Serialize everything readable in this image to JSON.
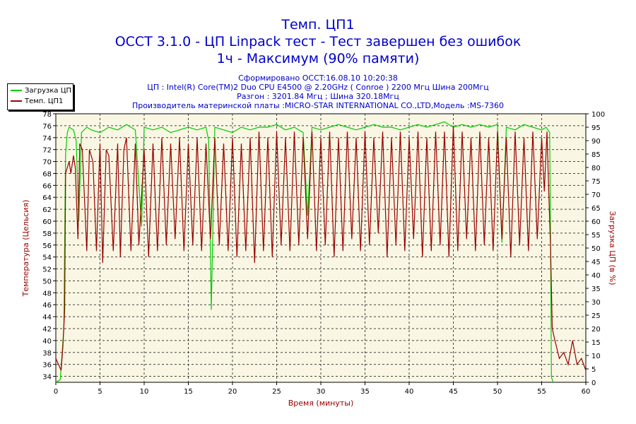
{
  "chart_data": {
    "type": "line",
    "title": "Темп. ЦП1",
    "subtitle_lines": [
      "OCCT 3.1.0 - ЦП Linpack тест - Тест завершен без ошибок",
      "1ч - Максимум (90% памяти)"
    ],
    "info_lines": [
      "Сформировано OCCT:16.08.10 10:20:38",
      "ЦП : Intel(R) Core(TM)2 Duo CPU E4500 @ 2.20GHz ( Conroe ) 2200 Mгц Шина 200Mгц",
      "Разгон : 3201.84 Mгц ; Шина 320.18Mгц",
      "Производитель материнской платы :MICRO-STAR INTERNATIONAL CO.,LTD,Модель :MS-7360"
    ],
    "xlabel": "Время (минуты)",
    "ylabel": "Температура (Цельсия)",
    "y2label": "Загрузка ЦП (в %)",
    "xlim": [
      0,
      60
    ],
    "ylim": [
      33,
      78
    ],
    "y2lim": [
      0,
      100
    ],
    "x_ticks": [
      0,
      5,
      10,
      15,
      20,
      25,
      30,
      35,
      40,
      45,
      50,
      55,
      60
    ],
    "y_ticks": [
      34,
      36,
      38,
      40,
      42,
      44,
      46,
      48,
      50,
      52,
      54,
      56,
      58,
      60,
      62,
      64,
      66,
      68,
      70,
      72,
      74,
      76,
      78
    ],
    "y2_ticks": [
      0,
      5,
      10,
      15,
      20,
      25,
      30,
      35,
      40,
      45,
      50,
      55,
      60,
      65,
      70,
      75,
      80,
      85,
      90,
      95,
      100
    ],
    "grid": true,
    "legend_position": "top-left",
    "series": [
      {
        "name": "Загрузка ЦП",
        "axis": "right",
        "color": "#00cc00",
        "x": [
          0,
          0.5,
          0.9,
          1.1,
          1.3,
          1.5,
          2,
          2.3,
          2.6,
          2.9,
          3.5,
          4,
          5,
          6,
          7,
          8,
          8.5,
          9,
          9.7,
          10,
          11,
          12,
          13,
          14,
          15,
          16,
          17,
          17.3,
          17.6,
          18,
          19,
          20,
          21,
          22,
          23,
          24,
          25,
          26,
          27,
          28,
          28.5,
          29,
          30,
          31,
          32,
          33,
          34,
          35,
          36,
          37,
          38,
          39,
          40,
          41,
          42,
          43,
          44,
          45,
          46,
          47,
          48,
          49,
          50,
          50.5,
          51,
          52,
          53,
          54,
          55,
          55.5,
          55.9,
          56,
          56.1,
          56.3
        ],
        "values": [
          0,
          1,
          20,
          85,
          93,
          95,
          94,
          90,
          60,
          93,
          95,
          94,
          93,
          95,
          94,
          96,
          95,
          94,
          58,
          95,
          94,
          95,
          93,
          94,
          95,
          94,
          95,
          90,
          27,
          95,
          94,
          93,
          95,
          94,
          95,
          95,
          96,
          94,
          95,
          93,
          62,
          95,
          94,
          95,
          96,
          95,
          94,
          95,
          96,
          95,
          95,
          94,
          95,
          96,
          95,
          96,
          97,
          95,
          96,
          95,
          96,
          95,
          96,
          52,
          95,
          94,
          96,
          95,
          94,
          95,
          93,
          56,
          2,
          0
        ]
      },
      {
        "name": "Темп. ЦП1",
        "axis": "left",
        "color": "#990000",
        "x": [
          0,
          0.3,
          0.6,
          0.8,
          1,
          1.1,
          1.3,
          1.5,
          1.7,
          2,
          2.2,
          2.5,
          2.7,
          3,
          3.5,
          3.8,
          4.2,
          4.6,
          5,
          5.3,
          5.7,
          6,
          6.5,
          7,
          7.3,
          7.7,
          8,
          8.5,
          9,
          9.4,
          10,
          10.5,
          11,
          11.5,
          12,
          12.5,
          13,
          13.5,
          14,
          14.5,
          15,
          15.5,
          16,
          16.5,
          17,
          17.5,
          18,
          18.5,
          19,
          19.5,
          20,
          20.5,
          21,
          21.5,
          22,
          22.5,
          23,
          23.5,
          24,
          24.5,
          25,
          25.5,
          26,
          26.5,
          27,
          27.5,
          28,
          28.5,
          29,
          29.5,
          30,
          30.5,
          31,
          31.5,
          32,
          32.5,
          33,
          33.5,
          34,
          34.5,
          35,
          35.5,
          36,
          36.5,
          37,
          37.5,
          38,
          38.5,
          39,
          39.5,
          40,
          40.5,
          41,
          41.5,
          42,
          42.5,
          43,
          43.5,
          44,
          44.5,
          45,
          45.5,
          46,
          46.5,
          47,
          47.5,
          48,
          48.5,
          49,
          49.5,
          50,
          50.5,
          51,
          51.5,
          52,
          52.5,
          53,
          53.5,
          54,
          54.5,
          55,
          55.3,
          55.6,
          55.8,
          56,
          56.2,
          56.5,
          57,
          57.5,
          58,
          58.5,
          59,
          59.5,
          60
        ],
        "values": [
          37,
          36,
          35,
          39,
          45,
          68,
          69,
          70,
          68,
          71,
          69,
          57,
          73,
          72,
          55,
          72,
          70,
          55,
          73,
          53,
          72,
          71,
          55,
          73,
          54,
          72,
          74,
          55,
          73,
          56,
          72,
          54,
          73,
          55,
          74,
          56,
          73,
          57,
          74,
          55,
          73,
          56,
          74,
          55,
          73,
          57,
          74,
          56,
          73,
          55,
          74,
          54,
          73,
          55,
          74,
          53,
          75,
          55,
          74,
          54,
          75,
          56,
          74,
          55,
          75,
          56,
          74,
          57,
          75,
          55,
          74,
          56,
          75,
          54,
          74,
          55,
          75,
          57,
          74,
          55,
          75,
          56,
          74,
          58,
          75,
          54,
          74,
          56,
          75,
          55,
          74,
          57,
          75,
          54,
          74,
          55,
          75,
          56,
          75,
          54,
          76,
          55,
          75,
          57,
          74,
          55,
          75,
          56,
          74,
          55,
          75,
          57,
          74,
          54,
          75,
          56,
          74,
          55,
          75,
          57,
          74,
          65,
          75,
          65,
          56,
          42,
          40,
          37,
          38,
          36,
          40,
          36,
          37,
          35
        ]
      }
    ]
  },
  "colors": {
    "title": "#0000cc",
    "axis_labels": "#990000",
    "plot_background": "#f9f6e3",
    "grid": "#444444"
  }
}
